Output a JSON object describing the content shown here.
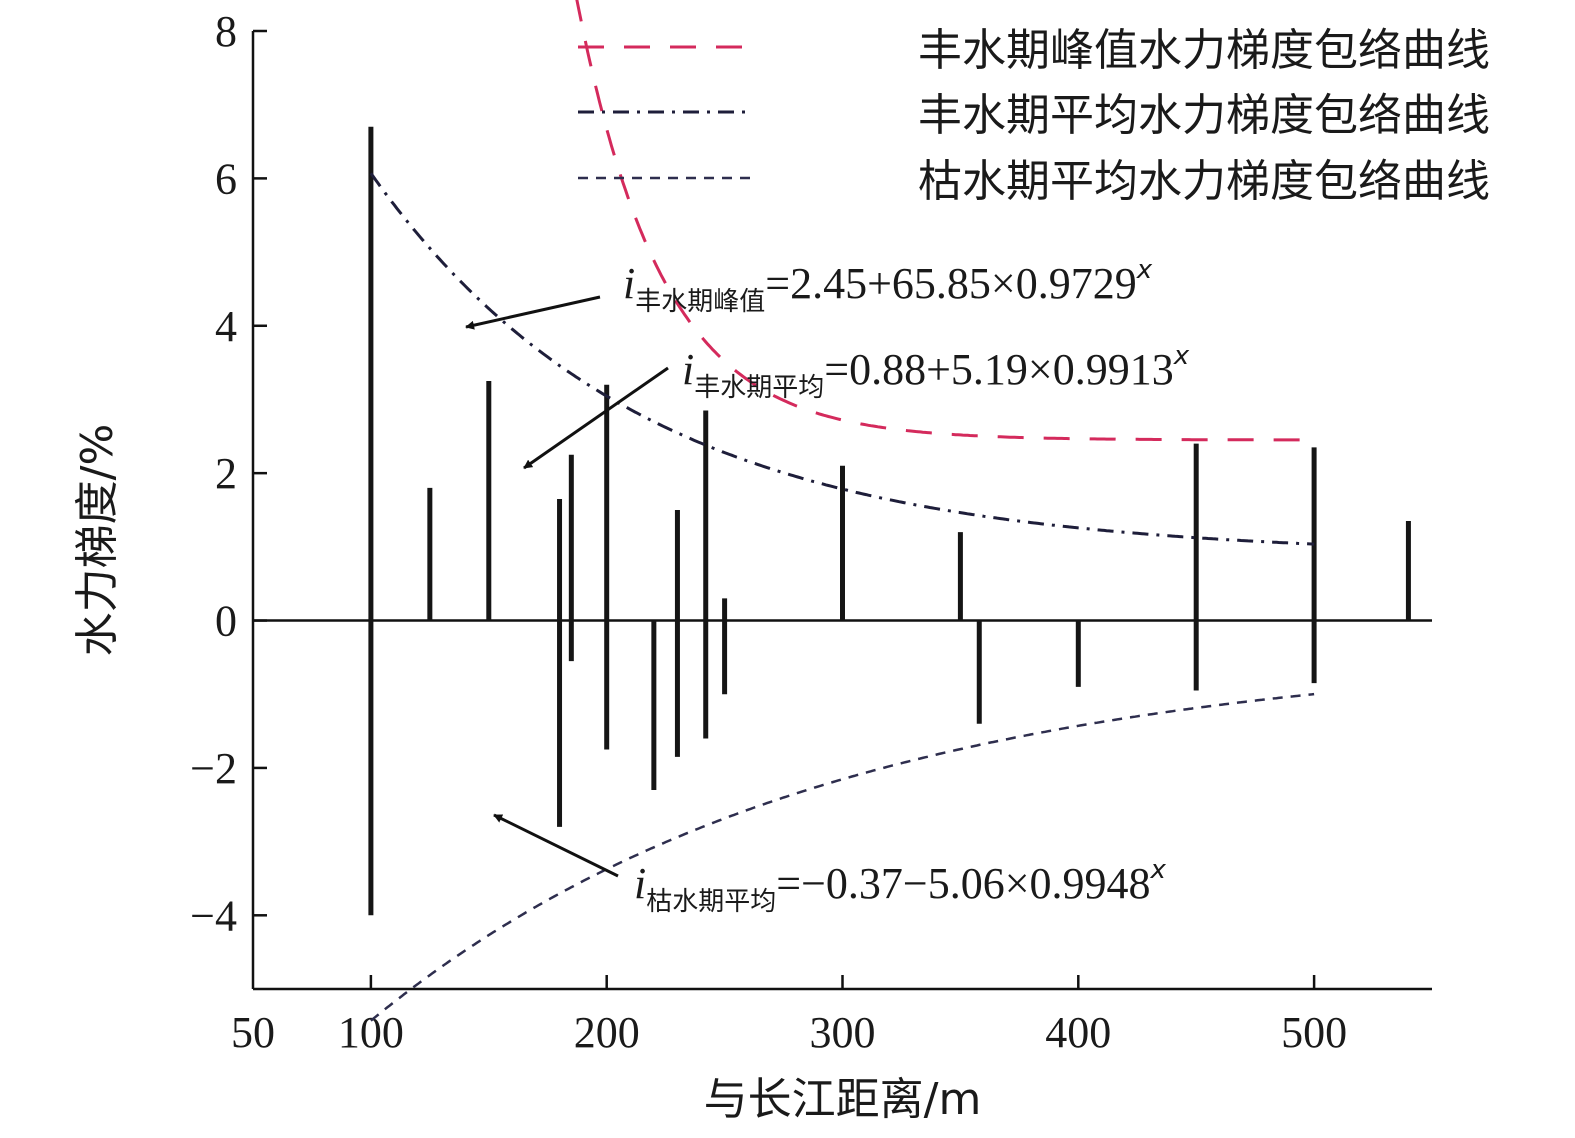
{
  "chart_data": {
    "type": "bar",
    "xlabel": "与长江距离/m",
    "ylabel": "水力梯度/%",
    "xlim": [
      50,
      550
    ],
    "ylim": [
      -5,
      8
    ],
    "xticks": [
      50,
      100,
      200,
      300,
      400,
      500
    ],
    "yticks": [
      -4,
      -2,
      0,
      2,
      4,
      6,
      8
    ],
    "ranges": [
      {
        "x": 100,
        "top": 6.7,
        "bottom": -4.0
      },
      {
        "x": 125,
        "top": 1.8,
        "bottom": 0
      },
      {
        "x": 150,
        "top": 3.25,
        "bottom": 0
      },
      {
        "x": 180,
        "top": 1.65,
        "bottom": -2.8
      },
      {
        "x": 185,
        "top": 2.25,
        "bottom": -0.55
      },
      {
        "x": 200,
        "top": 3.2,
        "bottom": -1.75
      },
      {
        "x": 220,
        "top": 0,
        "bottom": -2.3
      },
      {
        "x": 230,
        "top": 1.5,
        "bottom": -1.85
      },
      {
        "x": 242,
        "top": 2.85,
        "bottom": -1.6
      },
      {
        "x": 250,
        "top": 0.3,
        "bottom": -1.0
      },
      {
        "x": 300,
        "top": 2.1,
        "bottom": 0
      },
      {
        "x": 350,
        "top": 1.2,
        "bottom": 0
      },
      {
        "x": 358,
        "top": 0,
        "bottom": -1.4
      },
      {
        "x": 400,
        "top": 0,
        "bottom": -0.9
      },
      {
        "x": 450,
        "top": 2.4,
        "bottom": -0.95
      },
      {
        "x": 500,
        "top": 2.35,
        "bottom": -0.85
      },
      {
        "x": 540,
        "top": 1.35,
        "bottom": 0
      }
    ],
    "series": [
      {
        "name": "丰水期峰值水力梯度包络曲线",
        "a": 2.45,
        "b": 65.85,
        "c": 0.9729,
        "color": "#d42a5c",
        "dash": "26,20",
        "width": 3
      },
      {
        "name": "丰水期平均水力梯度包络曲线",
        "a": 0.88,
        "b": 5.19,
        "c": 0.9913,
        "color": "#1e1e3a",
        "dash": "16,8,3,8",
        "width": 3
      },
      {
        "name": "枯水期平均水力梯度包络曲线",
        "a": -0.37,
        "b": -5.06,
        "c": 0.9948,
        "color": "#2e2e4e",
        "dash": "10,8",
        "width": 2.5
      }
    ],
    "curve_range": [
      100,
      500
    ],
    "equations": [
      {
        "var": "i",
        "sub": "丰水期峰值",
        "rhs": "=2.45+65.85×0.9729",
        "sup": "x"
      },
      {
        "var": "i",
        "sub": "丰水期平均",
        "rhs": "=0.88+5.19×0.9913",
        "sup": "x"
      },
      {
        "var": "i",
        "sub": "枯水期平均",
        "rhs": "=−0.37−5.06×0.9948",
        "sup": "x"
      }
    ],
    "grid": false,
    "legend_position": "top-right"
  }
}
